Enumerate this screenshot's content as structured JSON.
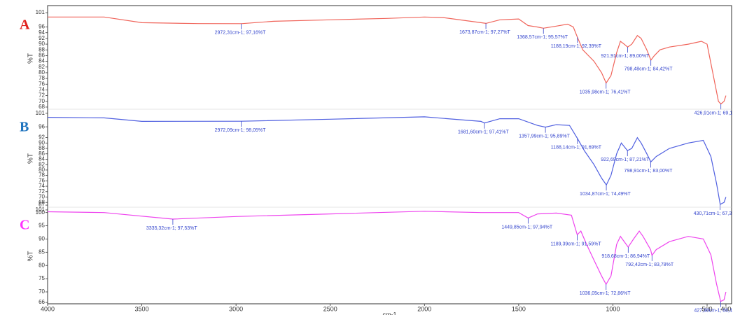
{
  "chart_data": [
    {
      "type": "line",
      "title": "A",
      "title_color": "#e0201c",
      "ylabel": "%T",
      "color": "#f0645a",
      "peak_color": "#3344cc",
      "xlim": [
        4000,
        370
      ],
      "ylim": [
        67.5,
        102.5
      ],
      "yticks": [
        101,
        96,
        94,
        92,
        90,
        88,
        86,
        84,
        82,
        80,
        78,
        76,
        74,
        72,
        70,
        68
      ],
      "x": [
        4000,
        3700,
        3500,
        3200,
        2972.31,
        2800,
        2500,
        2200,
        2000,
        1900,
        1700,
        1673.87,
        1600,
        1500,
        1450,
        1400,
        1368.57,
        1300,
        1240,
        1210,
        1188.19,
        1160,
        1100,
        1060,
        1035.98,
        1010,
        980,
        960,
        940,
        921.91,
        900,
        870,
        850,
        820,
        798.48,
        780,
        750,
        700,
        600,
        530,
        500,
        470,
        440,
        426.91,
        410,
        400
      ],
      "values": [
        99.5,
        99.5,
        97.5,
        97.2,
        97.16,
        98,
        98.5,
        99,
        99.5,
        99.3,
        97.5,
        97.27,
        98.5,
        98.8,
        96.5,
        96,
        95.57,
        96.3,
        97,
        96,
        92.39,
        88,
        84,
        80,
        76.41,
        79,
        87,
        91,
        90,
        89,
        90,
        93,
        92,
        88,
        84.42,
        86,
        88,
        89,
        90,
        91,
        90,
        80,
        70,
        69.1,
        70,
        72
      ],
      "peaks": [
        {
          "x": 2972.31,
          "y": 97.16,
          "label": "2972,31cm-1; 97,16%T"
        },
        {
          "x": 1673.87,
          "y": 97.27,
          "label": "1673,87cm-1; 97,27%T"
        },
        {
          "x": 1368.57,
          "y": 95.57,
          "label": "1368,57cm-1; 95,57%T"
        },
        {
          "x": 1188.19,
          "y": 92.39,
          "label": "1188,19cm-1; 92,39%T"
        },
        {
          "x": 1035.98,
          "y": 76.41,
          "label": "1035,98cm-1; 76,41%T"
        },
        {
          "x": 921.91,
          "y": 89,
          "label": "921,91cm-1; 89,00%T"
        },
        {
          "x": 798.48,
          "y": 84.42,
          "label": "798,48cm-1; 84,42%T"
        },
        {
          "x": 426.91,
          "y": 69.1,
          "label": "426,91cm-1; 69,1"
        }
      ]
    },
    {
      "type": "line",
      "title": "B",
      "title_color": "#1e73be",
      "ylabel": "%T",
      "color": "#4f5fe0",
      "peak_color": "#3344cc",
      "xlim": [
        4000,
        370
      ],
      "ylim": [
        66.5,
        102
      ],
      "yticks": [
        101,
        96,
        92,
        90,
        88,
        86,
        84,
        82,
        80,
        78,
        76,
        74,
        72,
        70,
        68,
        67
      ],
      "x": [
        4000,
        3700,
        3500,
        2972.09,
        2500,
        2000,
        1700,
        1681.6,
        1600,
        1500,
        1400,
        1357.99,
        1300,
        1230,
        1188.14,
        1150,
        1100,
        1060,
        1034.87,
        1010,
        980,
        955,
        922.69,
        900,
        870,
        850,
        820,
        798.91,
        770,
        700,
        600,
        520,
        480,
        450,
        430.71,
        410,
        400
      ],
      "values": [
        99.5,
        99.3,
        98,
        98.05,
        98.8,
        99.7,
        98,
        97.41,
        99,
        99,
        96.5,
        95.89,
        96.8,
        96.5,
        91.69,
        87,
        82,
        77,
        74.49,
        78,
        86,
        90,
        87.21,
        88,
        92,
        90,
        86,
        83,
        85,
        88,
        90,
        91,
        85,
        75,
        67.3,
        68,
        70
      ],
      "peaks": [
        {
          "x": 2972.09,
          "y": 98.05,
          "label": "2972,09cm-1; 98,05%T"
        },
        {
          "x": 1681.6,
          "y": 97.41,
          "label": "1681,60cm-1; 97,41%T"
        },
        {
          "x": 1357.99,
          "y": 95.89,
          "label": "1357,99cm-1; 95,89%T"
        },
        {
          "x": 1188.14,
          "y": 91.69,
          "label": "1188,14cm-1; 91,69%T"
        },
        {
          "x": 1034.87,
          "y": 74.49,
          "label": "1034,87cm-1; 74,49%T"
        },
        {
          "x": 922.69,
          "y": 87.21,
          "label": "922,69cm-1; 87,21%T"
        },
        {
          "x": 798.91,
          "y": 83,
          "label": "798,91cm-1; 83,00%T"
        },
        {
          "x": 430.71,
          "y": 67.3,
          "label": "430,71cm-1; 67,3"
        }
      ]
    },
    {
      "type": "line",
      "title": "C",
      "title_color": "#ff33ff",
      "ylabel": "%T",
      "color": "#ee44ee",
      "peak_color": "#3344cc",
      "xlim": [
        4000,
        370
      ],
      "ylim": [
        65.5,
        101.5
      ],
      "yticks": [
        101,
        100,
        95,
        90,
        85,
        80,
        75,
        70,
        66
      ],
      "xticks": [
        4000,
        3500,
        3000,
        2500,
        2000,
        1500,
        1000,
        500,
        400
      ],
      "xlabel": "cm-1",
      "x": [
        4000,
        3700,
        3335.32,
        3000,
        2500,
        2000,
        1700,
        1500,
        1449.85,
        1400,
        1300,
        1220,
        1189.39,
        1170,
        1140,
        1100,
        1060,
        1036.05,
        1010,
        980,
        960,
        918.68,
        890,
        860,
        840,
        800,
        792.42,
        770,
        700,
        600,
        520,
        480,
        450,
        427.98,
        410,
        400
      ],
      "values": [
        100.3,
        100,
        97.53,
        98.5,
        99.5,
        100.5,
        100,
        100,
        97.94,
        99.5,
        99.8,
        99,
        91.59,
        93,
        88,
        82,
        76,
        72.86,
        76,
        88,
        91,
        86.94,
        90,
        93,
        91,
        86,
        83.78,
        86,
        89,
        91,
        90,
        84,
        73,
        66.4,
        67,
        70
      ],
      "peaks": [
        {
          "x": 3335.32,
          "y": 97.53,
          "label": "3335,32cm-1; 97,53%T"
        },
        {
          "x": 1449.85,
          "y": 97.94,
          "label": "1449,85cm-1; 97,94%T"
        },
        {
          "x": 1189.39,
          "y": 91.59,
          "label": "1189,39cm-1; 91,59%T"
        },
        {
          "x": 1036.05,
          "y": 72.86,
          "label": "1036,05cm-1; 72,86%T"
        },
        {
          "x": 918.68,
          "y": 86.94,
          "label": "918,68cm-1; 86,94%T"
        },
        {
          "x": 792.42,
          "y": 83.78,
          "label": "792,42cm-1; 83,78%T"
        },
        {
          "x": 427.98,
          "y": 66.4,
          "label": "427,98cm-1; 66,4"
        }
      ]
    }
  ]
}
